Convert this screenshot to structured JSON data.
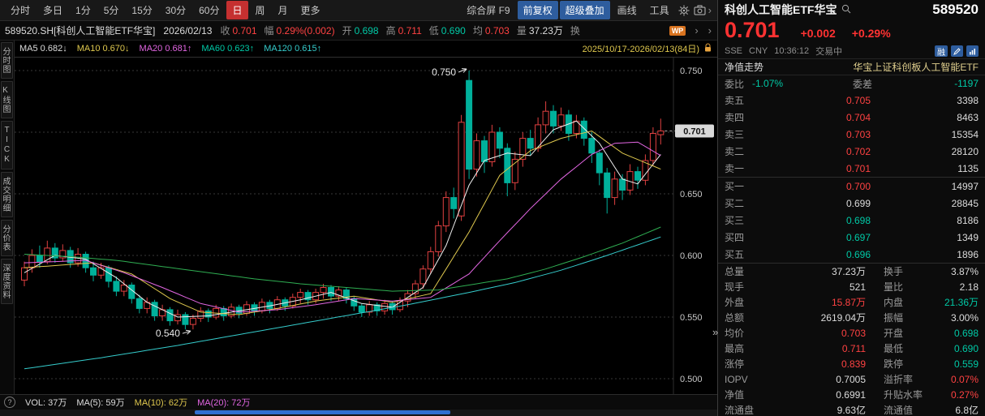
{
  "icons": {
    "help": "?",
    "double_chevron": "»",
    "chevron_right": "›"
  },
  "toolbar": {
    "periods": [
      "分时",
      "多日",
      "1分",
      "5分",
      "15分",
      "30分",
      "60分",
      "日",
      "周",
      "月",
      "更多"
    ],
    "active_period": "日",
    "tools": [
      {
        "label": "综合屏 F9",
        "style": "plain"
      },
      {
        "label": "前复权",
        "style": "blue"
      },
      {
        "label": "超级叠加",
        "style": "blue"
      },
      {
        "label": "画线",
        "style": "plain"
      },
      {
        "label": "工具",
        "style": "plain"
      }
    ]
  },
  "infobar": {
    "symbol": "589520.SH[科创人工智能ETF华宝]",
    "date": "2026/02/13",
    "fields": [
      {
        "label": "收",
        "value": "0.701",
        "color": "red"
      },
      {
        "label": "幅",
        "value": "0.29%(0.002)",
        "color": "red"
      },
      {
        "label": "开",
        "value": "0.698",
        "color": "green"
      },
      {
        "label": "高",
        "value": "0.711",
        "color": "red"
      },
      {
        "label": "低",
        "value": "0.690",
        "color": "green"
      },
      {
        "label": "均",
        "value": "0.703",
        "color": "red"
      },
      {
        "label": "量",
        "value": "37.23万",
        "color": "white"
      },
      {
        "label": "换",
        "value": "",
        "color": "white"
      }
    ],
    "badge": "WP"
  },
  "mabar": {
    "items": [
      {
        "label": "MA5",
        "value": "0.682",
        "arrow": "↓",
        "color": "white"
      },
      {
        "label": "MA10",
        "value": "0.670",
        "arrow": "↓",
        "color": "yellow"
      },
      {
        "label": "MA20",
        "value": "0.681",
        "arrow": "↑",
        "color": "magenta"
      },
      {
        "label": "MA60",
        "value": "0.623",
        "arrow": "↑",
        "color": "green"
      },
      {
        "label": "MA120",
        "value": "0.615",
        "arrow": "↑",
        "color": "cyan"
      }
    ],
    "range": "2025/10/17-2026/02/13(84日)"
  },
  "sidebar": {
    "tabs": [
      "分时图",
      "K线图",
      "TICK",
      "成交明细",
      "分价表",
      "深度资料"
    ]
  },
  "volbar": {
    "items": [
      {
        "label": "VOL:",
        "value": "37万",
        "color": "white"
      },
      {
        "label": "MA(5):",
        "value": "59万",
        "color": "white"
      },
      {
        "label": "MA(10):",
        "value": "62万",
        "color": "yellow"
      },
      {
        "label": "MA(20):",
        "value": "72万",
        "color": "magenta"
      }
    ]
  },
  "quote_panel": {
    "name": "科创人工智能ETF华宝",
    "code": "589520",
    "price": "0.701",
    "change": "+0.002",
    "change_pct": "+0.29%",
    "exchange": "SSE",
    "currency": "CNY",
    "time": "10:36:12",
    "status": "交易中",
    "badge_rong": "融",
    "nav_label": "净值走势",
    "nav_name": "华宝上证科创板人工智能ETF",
    "weibi_label": "委比",
    "weibi": "-1.07%",
    "weicha_label": "委差",
    "weicha": "-1197",
    "asks": [
      {
        "label": "卖五",
        "price": "0.705",
        "vol": "3398",
        "color": "red"
      },
      {
        "label": "卖四",
        "price": "0.704",
        "vol": "8463",
        "color": "red"
      },
      {
        "label": "卖三",
        "price": "0.703",
        "vol": "15354",
        "color": "red"
      },
      {
        "label": "卖二",
        "price": "0.702",
        "vol": "28120",
        "color": "red"
      },
      {
        "label": "卖一",
        "price": "0.701",
        "vol": "1135",
        "color": "red"
      }
    ],
    "bids": [
      {
        "label": "买一",
        "price": "0.700",
        "vol": "14997",
        "color": "red"
      },
      {
        "label": "买二",
        "price": "0.699",
        "vol": "28845",
        "color": "white"
      },
      {
        "label": "买三",
        "price": "0.698",
        "vol": "8186",
        "color": "green"
      },
      {
        "label": "买四",
        "price": "0.697",
        "vol": "1349",
        "color": "green"
      },
      {
        "label": "买五",
        "price": "0.696",
        "vol": "1896",
        "color": "green"
      }
    ],
    "stats": [
      [
        {
          "label": "总量",
          "value": "37.23万",
          "color": "white"
        },
        {
          "label": "换手",
          "value": "3.87%",
          "color": "white"
        }
      ],
      [
        {
          "label": "现手",
          "value": "521",
          "color": "white"
        },
        {
          "label": "量比",
          "value": "2.18",
          "color": "white"
        }
      ],
      [
        {
          "label": "外盘",
          "value": "15.87万",
          "color": "red"
        },
        {
          "label": "内盘",
          "value": "21.36万",
          "color": "green"
        }
      ],
      [
        {
          "label": "总额",
          "value": "2619.04万",
          "color": "white"
        },
        {
          "label": "振幅",
          "value": "3.00%",
          "color": "white"
        }
      ],
      [
        {
          "label": "均价",
          "value": "0.703",
          "color": "red"
        },
        {
          "label": "开盘",
          "value": "0.698",
          "color": "green"
        }
      ],
      [
        {
          "label": "最高",
          "value": "0.711",
          "color": "red"
        },
        {
          "label": "最低",
          "value": "0.690",
          "color": "green"
        }
      ],
      [
        {
          "label": "涨停",
          "value": "0.839",
          "color": "red"
        },
        {
          "label": "跌停",
          "value": "0.559",
          "color": "green"
        }
      ],
      [
        {
          "label": "IOPV",
          "value": "0.7005",
          "color": "white"
        },
        {
          "label": "溢折率",
          "value": "0.07%",
          "color": "red"
        }
      ],
      [
        {
          "label": "净值",
          "value": "0.6991",
          "color": "white"
        },
        {
          "label": "升贴水率",
          "value": "0.27%",
          "color": "red"
        }
      ],
      [
        {
          "label": "流通盘",
          "value": "9.63亿",
          "color": "white"
        },
        {
          "label": "流通值",
          "value": "6.8亿",
          "color": "white"
        }
      ]
    ]
  },
  "chart_data": {
    "type": "candlestick",
    "title": "589520.SH 科创人工智能ETF华宝 日K",
    "date_range": "2025/10/17-2026/02/13(84日)",
    "ylim": [
      0.493,
      0.757
    ],
    "y_ticks": [
      0.75,
      0.7,
      0.65,
      0.6,
      0.55,
      0.5
    ],
    "last_price": 0.701,
    "up_color": "#e04040",
    "down_color": "#00b09b",
    "grid_color": "#383838",
    "annotations": [
      {
        "text": "0.750",
        "index": 58,
        "price": 0.75,
        "position": "above"
      },
      {
        "text": "0.540",
        "index": 22,
        "price": 0.54,
        "position": "below"
      }
    ],
    "candles": [
      [
        0.58,
        0.595,
        0.575,
        0.59
      ],
      [
        0.59,
        0.605,
        0.586,
        0.6
      ],
      [
        0.6,
        0.608,
        0.59,
        0.595
      ],
      [
        0.595,
        0.612,
        0.593,
        0.606
      ],
      [
        0.606,
        0.61,
        0.594,
        0.598
      ],
      [
        0.598,
        0.609,
        0.595,
        0.604
      ],
      [
        0.604,
        0.607,
        0.59,
        0.594
      ],
      [
        0.594,
        0.606,
        0.591,
        0.601
      ],
      [
        0.601,
        0.603,
        0.586,
        0.59
      ],
      [
        0.59,
        0.595,
        0.579,
        0.584
      ],
      [
        0.584,
        0.594,
        0.581,
        0.59
      ],
      [
        0.59,
        0.592,
        0.574,
        0.579
      ],
      [
        0.579,
        0.583,
        0.567,
        0.571
      ],
      [
        0.571,
        0.58,
        0.567,
        0.576
      ],
      [
        0.576,
        0.578,
        0.561,
        0.565
      ],
      [
        0.565,
        0.568,
        0.553,
        0.557
      ],
      [
        0.557,
        0.566,
        0.553,
        0.562
      ],
      [
        0.562,
        0.564,
        0.547,
        0.551
      ],
      [
        0.551,
        0.56,
        0.547,
        0.556
      ],
      [
        0.556,
        0.558,
        0.543,
        0.547
      ],
      [
        0.547,
        0.556,
        0.544,
        0.552
      ],
      [
        0.552,
        0.554,
        0.54,
        0.544
      ],
      [
        0.544,
        0.552,
        0.54,
        0.549
      ],
      [
        0.549,
        0.558,
        0.546,
        0.555
      ],
      [
        0.555,
        0.557,
        0.546,
        0.55
      ],
      [
        0.55,
        0.56,
        0.548,
        0.557
      ],
      [
        0.557,
        0.559,
        0.547,
        0.551
      ],
      [
        0.551,
        0.561,
        0.549,
        0.558
      ],
      [
        0.558,
        0.56,
        0.549,
        0.553
      ],
      [
        0.553,
        0.563,
        0.551,
        0.56
      ],
      [
        0.56,
        0.562,
        0.551,
        0.555
      ],
      [
        0.555,
        0.565,
        0.553,
        0.562
      ],
      [
        0.562,
        0.564,
        0.553,
        0.557
      ],
      [
        0.557,
        0.567,
        0.555,
        0.564
      ],
      [
        0.564,
        0.566,
        0.555,
        0.559
      ],
      [
        0.559,
        0.569,
        0.557,
        0.566
      ],
      [
        0.566,
        0.573,
        0.561,
        0.57
      ],
      [
        0.57,
        0.572,
        0.56,
        0.564
      ],
      [
        0.564,
        0.573,
        0.561,
        0.57
      ],
      [
        0.57,
        0.577,
        0.565,
        0.574
      ],
      [
        0.574,
        0.576,
        0.563,
        0.567
      ],
      [
        0.567,
        0.575,
        0.563,
        0.572
      ],
      [
        0.572,
        0.574,
        0.561,
        0.565
      ],
      [
        0.565,
        0.567,
        0.555,
        0.559
      ],
      [
        0.559,
        0.561,
        0.55,
        0.554
      ],
      [
        0.554,
        0.563,
        0.551,
        0.56
      ],
      [
        0.56,
        0.562,
        0.551,
        0.555
      ],
      [
        0.555,
        0.564,
        0.552,
        0.561
      ],
      [
        0.561,
        0.563,
        0.552,
        0.556
      ],
      [
        0.556,
        0.566,
        0.554,
        0.563
      ],
      [
        0.563,
        0.572,
        0.558,
        0.569
      ],
      [
        0.569,
        0.58,
        0.565,
        0.577
      ],
      [
        0.577,
        0.592,
        0.573,
        0.589
      ],
      [
        0.589,
        0.607,
        0.585,
        0.603
      ],
      [
        0.603,
        0.628,
        0.599,
        0.624
      ],
      [
        0.624,
        0.652,
        0.619,
        0.647
      ],
      [
        0.647,
        0.655,
        0.63,
        0.638
      ],
      [
        0.632,
        0.714,
        0.628,
        0.708
      ],
      [
        0.742,
        0.75,
        0.662,
        0.67
      ],
      [
        0.67,
        0.699,
        0.664,
        0.693
      ],
      [
        0.693,
        0.697,
        0.667,
        0.676
      ],
      [
        0.676,
        0.706,
        0.672,
        0.7
      ],
      [
        0.7,
        0.704,
        0.679,
        0.687
      ],
      [
        0.687,
        0.691,
        0.648,
        0.659
      ],
      [
        0.659,
        0.684,
        0.653,
        0.678
      ],
      [
        0.678,
        0.7,
        0.672,
        0.695
      ],
      [
        0.695,
        0.702,
        0.681,
        0.687
      ],
      [
        0.687,
        0.712,
        0.684,
        0.706
      ],
      [
        0.706,
        0.725,
        0.699,
        0.717
      ],
      [
        0.717,
        0.722,
        0.699,
        0.705
      ],
      [
        0.705,
        0.72,
        0.701,
        0.714
      ],
      [
        0.714,
        0.718,
        0.693,
        0.699
      ],
      [
        0.699,
        0.714,
        0.695,
        0.709
      ],
      [
        0.709,
        0.712,
        0.689,
        0.695
      ],
      [
        0.695,
        0.7,
        0.675,
        0.683
      ],
      [
        0.683,
        0.686,
        0.657,
        0.667
      ],
      [
        0.667,
        0.671,
        0.634,
        0.647
      ],
      [
        0.647,
        0.668,
        0.641,
        0.662
      ],
      [
        0.662,
        0.666,
        0.645,
        0.653
      ],
      [
        0.653,
        0.674,
        0.649,
        0.668
      ],
      [
        0.668,
        0.672,
        0.654,
        0.661
      ],
      [
        0.661,
        0.682,
        0.657,
        0.677
      ],
      [
        0.677,
        0.704,
        0.673,
        0.699
      ],
      [
        0.698,
        0.711,
        0.69,
        0.701
      ]
    ],
    "ma_lines": [
      {
        "name": "MA5",
        "color": "#f0f0f0",
        "points": [
          [
            0,
            0.586
          ],
          [
            4,
            0.6
          ],
          [
            8,
            0.597
          ],
          [
            12,
            0.582
          ],
          [
            16,
            0.562
          ],
          [
            20,
            0.55
          ],
          [
            24,
            0.551
          ],
          [
            28,
            0.555
          ],
          [
            32,
            0.559
          ],
          [
            36,
            0.564
          ],
          [
            40,
            0.57
          ],
          [
            44,
            0.561
          ],
          [
            48,
            0.558
          ],
          [
            52,
            0.574
          ],
          [
            55,
            0.608
          ],
          [
            58,
            0.657
          ],
          [
            60,
            0.677
          ],
          [
            63,
            0.683
          ],
          [
            66,
            0.681
          ],
          [
            69,
            0.702
          ],
          [
            72,
            0.709
          ],
          [
            75,
            0.691
          ],
          [
            78,
            0.662
          ],
          [
            80,
            0.658
          ],
          [
            83,
            0.682
          ]
        ]
      },
      {
        "name": "MA10",
        "color": "#dfc84e",
        "points": [
          [
            0,
            0.59
          ],
          [
            9,
            0.594
          ],
          [
            14,
            0.585
          ],
          [
            19,
            0.565
          ],
          [
            23,
            0.554
          ],
          [
            28,
            0.552
          ],
          [
            33,
            0.557
          ],
          [
            38,
            0.563
          ],
          [
            43,
            0.567
          ],
          [
            48,
            0.562
          ],
          [
            53,
            0.569
          ],
          [
            58,
            0.619
          ],
          [
            62,
            0.665
          ],
          [
            66,
            0.685
          ],
          [
            70,
            0.695
          ],
          [
            74,
            0.701
          ],
          [
            78,
            0.683
          ],
          [
            83,
            0.67
          ]
        ]
      },
      {
        "name": "MA20",
        "color": "#e266e2",
        "points": [
          [
            0,
            0.594
          ],
          [
            8,
            0.596
          ],
          [
            13,
            0.586
          ],
          [
            18,
            0.574
          ],
          [
            23,
            0.561
          ],
          [
            28,
            0.554
          ],
          [
            33,
            0.556
          ],
          [
            38,
            0.56
          ],
          [
            43,
            0.565
          ],
          [
            48,
            0.563
          ],
          [
            53,
            0.566
          ],
          [
            58,
            0.585
          ],
          [
            62,
            0.612
          ],
          [
            66,
            0.638
          ],
          [
            70,
            0.662
          ],
          [
            74,
            0.682
          ],
          [
            77,
            0.691
          ],
          [
            80,
            0.692
          ],
          [
            83,
            0.681
          ]
        ]
      },
      {
        "name": "MA60",
        "color": "#2fae52",
        "points": [
          [
            0,
            0.601
          ],
          [
            6,
            0.599
          ],
          [
            12,
            0.596
          ],
          [
            18,
            0.591
          ],
          [
            24,
            0.586
          ],
          [
            30,
            0.581
          ],
          [
            36,
            0.577
          ],
          [
            42,
            0.574
          ],
          [
            48,
            0.571
          ],
          [
            54,
            0.572
          ],
          [
            58,
            0.576
          ],
          [
            63,
            0.581
          ],
          [
            68,
            0.589
          ],
          [
            73,
            0.599
          ],
          [
            78,
            0.61
          ],
          [
            83,
            0.623
          ]
        ]
      },
      {
        "name": "MA120",
        "color": "#35cccc",
        "points": [
          [
            0,
            0.508
          ],
          [
            10,
            0.517
          ],
          [
            20,
            0.527
          ],
          [
            30,
            0.538
          ],
          [
            40,
            0.549
          ],
          [
            50,
            0.56
          ],
          [
            58,
            0.57
          ],
          [
            64,
            0.578
          ],
          [
            70,
            0.588
          ],
          [
            76,
            0.6
          ],
          [
            83,
            0.615
          ]
        ]
      }
    ]
  }
}
